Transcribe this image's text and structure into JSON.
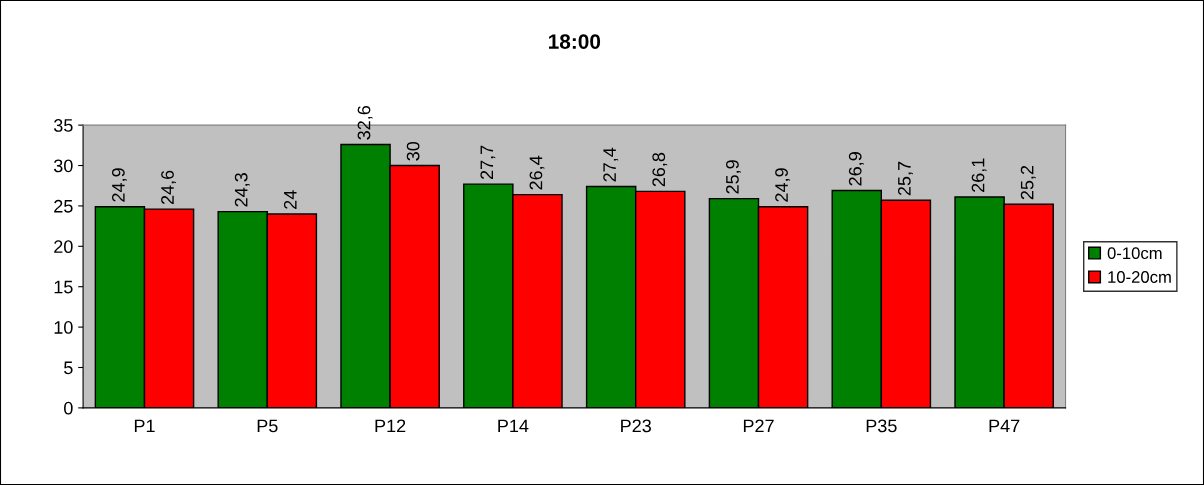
{
  "chart_data": {
    "type": "bar",
    "title": "18:00",
    "categories": [
      "P1",
      "P5",
      "P12",
      "P14",
      "P23",
      "P27",
      "P35",
      "P47"
    ],
    "series": [
      {
        "name": "0-10cm",
        "color": "#008000",
        "values": [
          24.9,
          24.3,
          32.6,
          27.7,
          27.4,
          25.9,
          26.9,
          26.1
        ],
        "value_labels": [
          "24,9",
          "24,3",
          "32,6",
          "27,7",
          "27,4",
          "25,9",
          "26,9",
          "26,1"
        ]
      },
      {
        "name": "10-20cm",
        "color": "#ff0000",
        "values": [
          24.6,
          24.0,
          30.0,
          26.4,
          26.8,
          24.9,
          25.7,
          25.2
        ],
        "value_labels": [
          "24,6",
          "24",
          "30",
          "26,4",
          "26,8",
          "24,9",
          "25,7",
          "25,2"
        ]
      }
    ],
    "ylim": [
      0,
      35
    ],
    "yticks": [
      0,
      5,
      10,
      15,
      20,
      25,
      30,
      35
    ],
    "grid": false,
    "legend": "right"
  }
}
